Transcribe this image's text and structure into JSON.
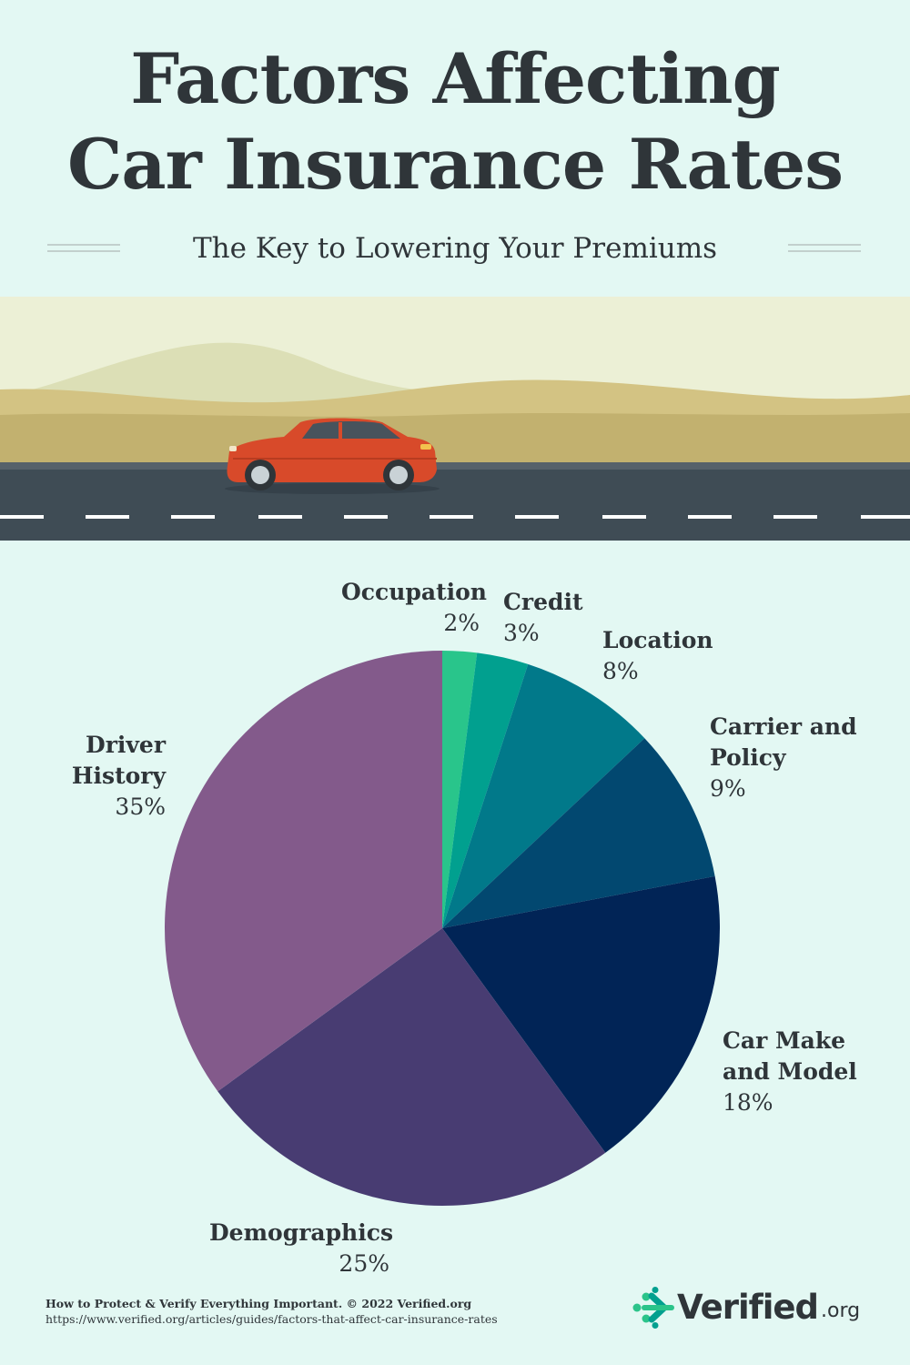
{
  "header": {
    "title_line1": "Factors Affecting",
    "title_line2": "Car Insurance Rates",
    "subtitle": "The Key to Lowering Your  Premiums"
  },
  "chart_data": {
    "type": "pie",
    "title": "",
    "start": "top, clockwise",
    "slices": [
      {
        "label": "Occupation",
        "pct_label": "2%",
        "value": 2,
        "color": "#29c58b"
      },
      {
        "label": "Credit",
        "pct_label": "3%",
        "value": 3,
        "color": "#01a08f"
      },
      {
        "label": "Location",
        "pct_label": "8%",
        "value": 8,
        "color": "#01798a"
      },
      {
        "label": "Carrier and\nPolicy",
        "pct_label": "9%",
        "value": 9,
        "color": "#024870"
      },
      {
        "label": "Car Make\nand Model",
        "pct_label": "18%",
        "value": 18,
        "color": "#012456"
      },
      {
        "label": "Demographics",
        "pct_label": "25%",
        "value": 25,
        "color": "#483c72"
      },
      {
        "label": "Driver\nHistory",
        "pct_label": "35%",
        "value": 35,
        "color": "#835a8b"
      }
    ]
  },
  "footer": {
    "credit": "How to Protect & Verify Everything Important. © 2022 Verified.org",
    "url": "https://www.verified.org/articles/guides/factors-that-affect-car-insurance-rates"
  },
  "logo": {
    "name": "Verified",
    "tld": ".org",
    "icon": "arrows-dots-icon",
    "colors": {
      "green": "#2bc48a",
      "teal": "#02a08f"
    }
  },
  "scene": {
    "icon": "red-car-on-road",
    "colors": {
      "sky": "#ecf0d6",
      "far_hill": "#dcdfb6",
      "near_hill": "#d3c383",
      "ground": "#c2b16f",
      "road": "#3f4c55",
      "car": "#d84a2a"
    }
  }
}
